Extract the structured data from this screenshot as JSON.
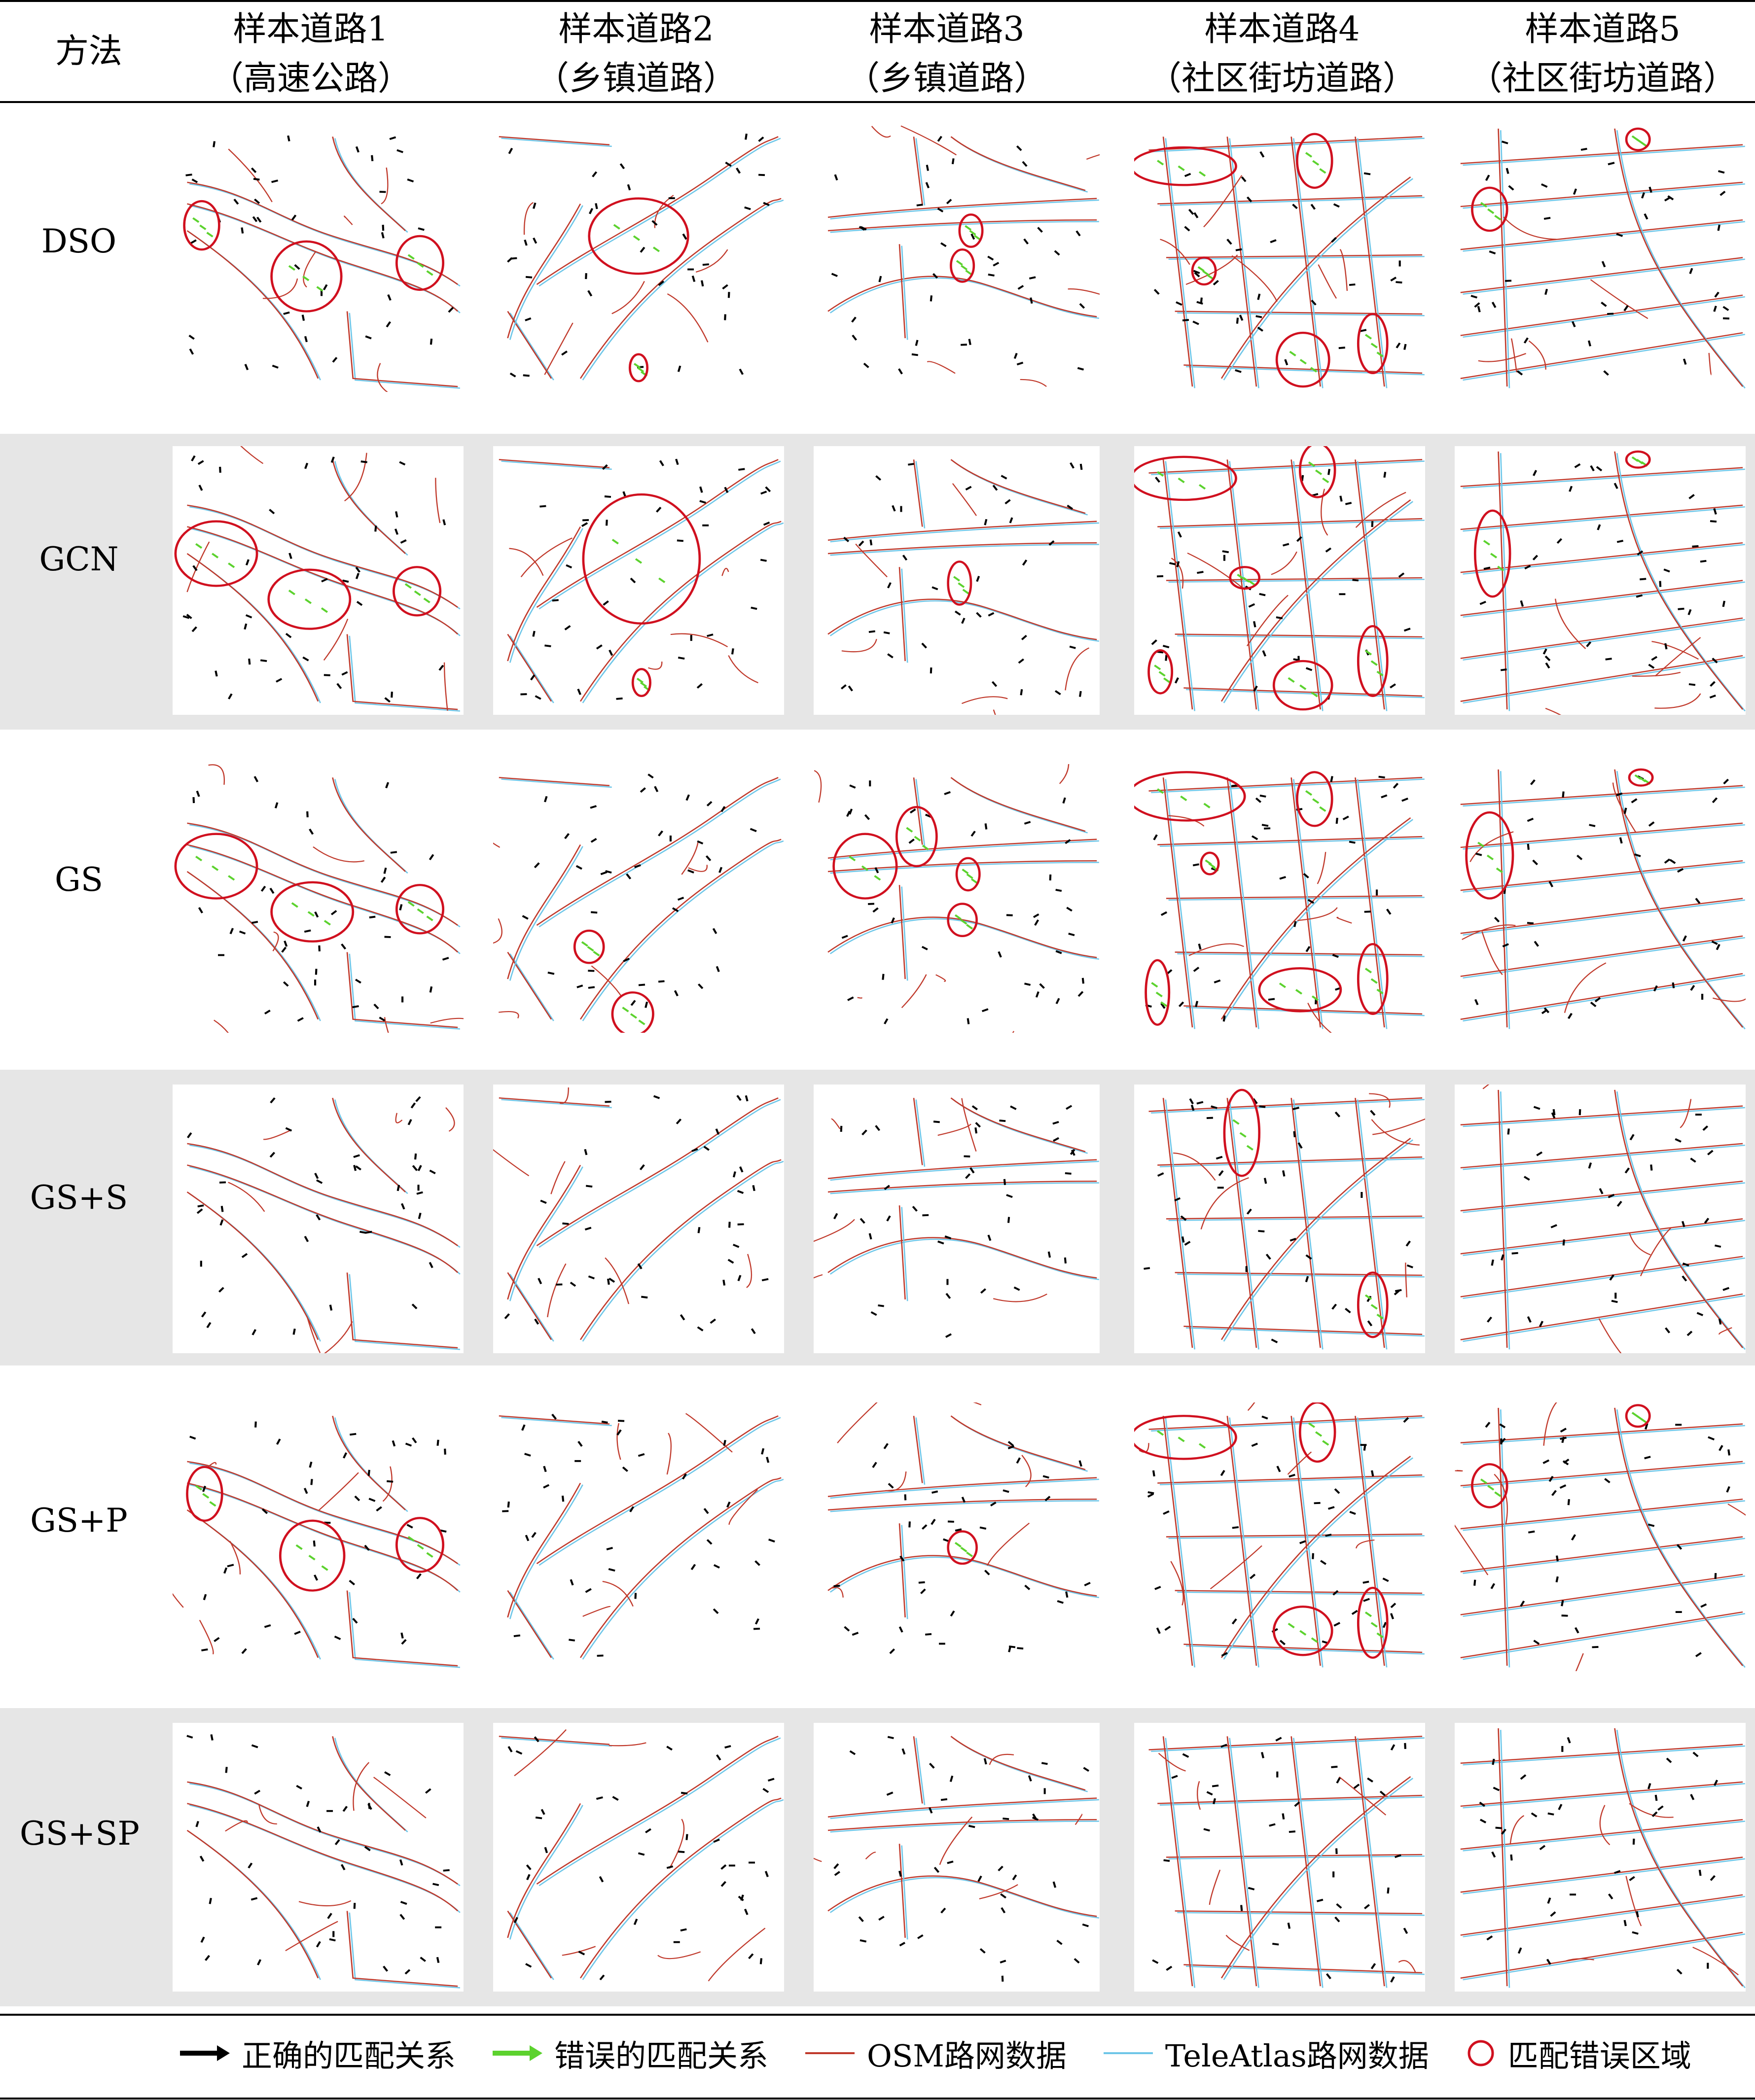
{
  "header": {
    "method_col": "方法",
    "samples": [
      {
        "line1": "样本道路1",
        "line2": "（高速公路）"
      },
      {
        "line1": "样本道路2",
        "line2": "（乡镇道路）"
      },
      {
        "line1": "样本道路3",
        "line2": "（乡镇道路）"
      },
      {
        "line1": "样本道路4",
        "line2": "（社区街坊道路）"
      },
      {
        "line1": "样本道路5",
        "line2": "（社区街坊道路）"
      }
    ]
  },
  "methods": [
    "DSO",
    "GCN",
    "GS",
    "GS+S",
    "GS+P",
    "GS+SP"
  ],
  "legend": {
    "correct": "正确的匹配关系",
    "wrong": "错误的匹配关系",
    "osm": "OSM路网数据",
    "teleatlas": "TeleAtlas路网数据",
    "error_region": "匹配错误区域"
  },
  "colors": {
    "osm_line": "#c0392b",
    "teleatlas_line": "#6ec6e8",
    "correct_arrow": "#000000",
    "wrong_arrow": "#5cd22e",
    "error_circle": "#d0101f",
    "band": "#e6e6e6"
  }
}
